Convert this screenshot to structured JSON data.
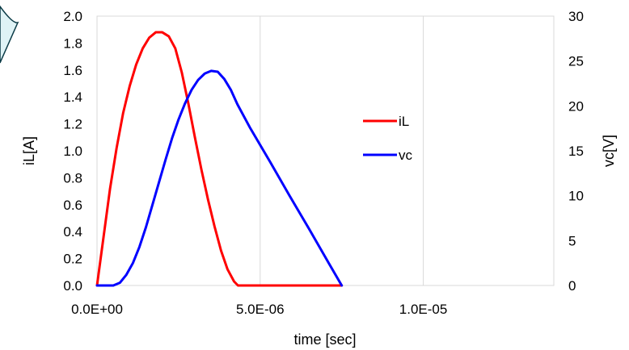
{
  "chart_data": {
    "type": "line",
    "xlabel": "time [sec]",
    "ylabel": "iL[A]",
    "y2label": "vc[V]",
    "xlim": [
      0,
      1.4e-05
    ],
    "ylim": [
      0,
      2.0
    ],
    "y2lim": [
      0,
      30
    ],
    "xticks": [
      0,
      5e-06,
      1e-05
    ],
    "xtick_labels": [
      "0.0E+00",
      "5.0E-06",
      "1.0E-05"
    ],
    "yticks": [
      0,
      0.2,
      0.4,
      0.6,
      0.8,
      1.0,
      1.2,
      1.4,
      1.6,
      1.8,
      2.0
    ],
    "ytick_labels": [
      "0.0",
      "0.2",
      "0.4",
      "0.6",
      "0.8",
      "1.0",
      "1.2",
      "1.4",
      "1.6",
      "1.8",
      "2.0"
    ],
    "y2ticks": [
      0,
      5,
      10,
      15,
      20,
      25,
      30
    ],
    "y2tick_labels": [
      "0",
      "5",
      "10",
      "15",
      "20",
      "25",
      "30"
    ],
    "grid": {
      "vertical": true,
      "horizontal": false
    },
    "legend": "center-right",
    "series": [
      {
        "name": "iL",
        "axis": "left",
        "color": "#ff0000",
        "x": [
          0,
          2e-07,
          4e-07,
          6e-07,
          8e-07,
          1e-06,
          1.2e-06,
          1.4e-06,
          1.6e-06,
          1.8e-06,
          2e-06,
          2.2e-06,
          2.4e-06,
          2.6e-06,
          2.8e-06,
          3e-06,
          3.2e-06,
          3.4e-06,
          3.6e-06,
          3.8e-06,
          4e-06,
          4.2e-06,
          4.32e-06,
          5e-06,
          6e-06,
          7e-06,
          7.5e-06
        ],
        "y": [
          0,
          0.36,
          0.72,
          1.02,
          1.28,
          1.48,
          1.64,
          1.76,
          1.84,
          1.88,
          1.88,
          1.85,
          1.76,
          1.58,
          1.35,
          1.1,
          0.86,
          0.64,
          0.44,
          0.26,
          0.12,
          0.03,
          0,
          0,
          0,
          0,
          0
        ]
      },
      {
        "name": "vc",
        "axis": "right",
        "color": "#0000ff",
        "x": [
          0,
          5e-07,
          7e-07,
          9e-07,
          1.1e-06,
          1.3e-06,
          1.5e-06,
          1.7e-06,
          1.9e-06,
          2.1e-06,
          2.3e-06,
          2.5e-06,
          2.7e-06,
          2.9e-06,
          3.1e-06,
          3.3e-06,
          3.5e-06,
          3.7e-06,
          3.9e-06,
          4.1e-06,
          4.3e-06,
          4.7e-06,
          5.3e-06,
          5.9e-06,
          6.5e-06,
          7.1e-06,
          7.5e-06
        ],
        "y": [
          0,
          0,
          0.3,
          1.2,
          2.5,
          4.3,
          6.5,
          9.0,
          11.5,
          14.0,
          16.4,
          18.5,
          20.3,
          21.8,
          22.9,
          23.6,
          23.9,
          23.8,
          23.0,
          21.8,
          20.2,
          17.5,
          13.8,
          10.0,
          6.3,
          2.5,
          0
        ]
      }
    ]
  }
}
